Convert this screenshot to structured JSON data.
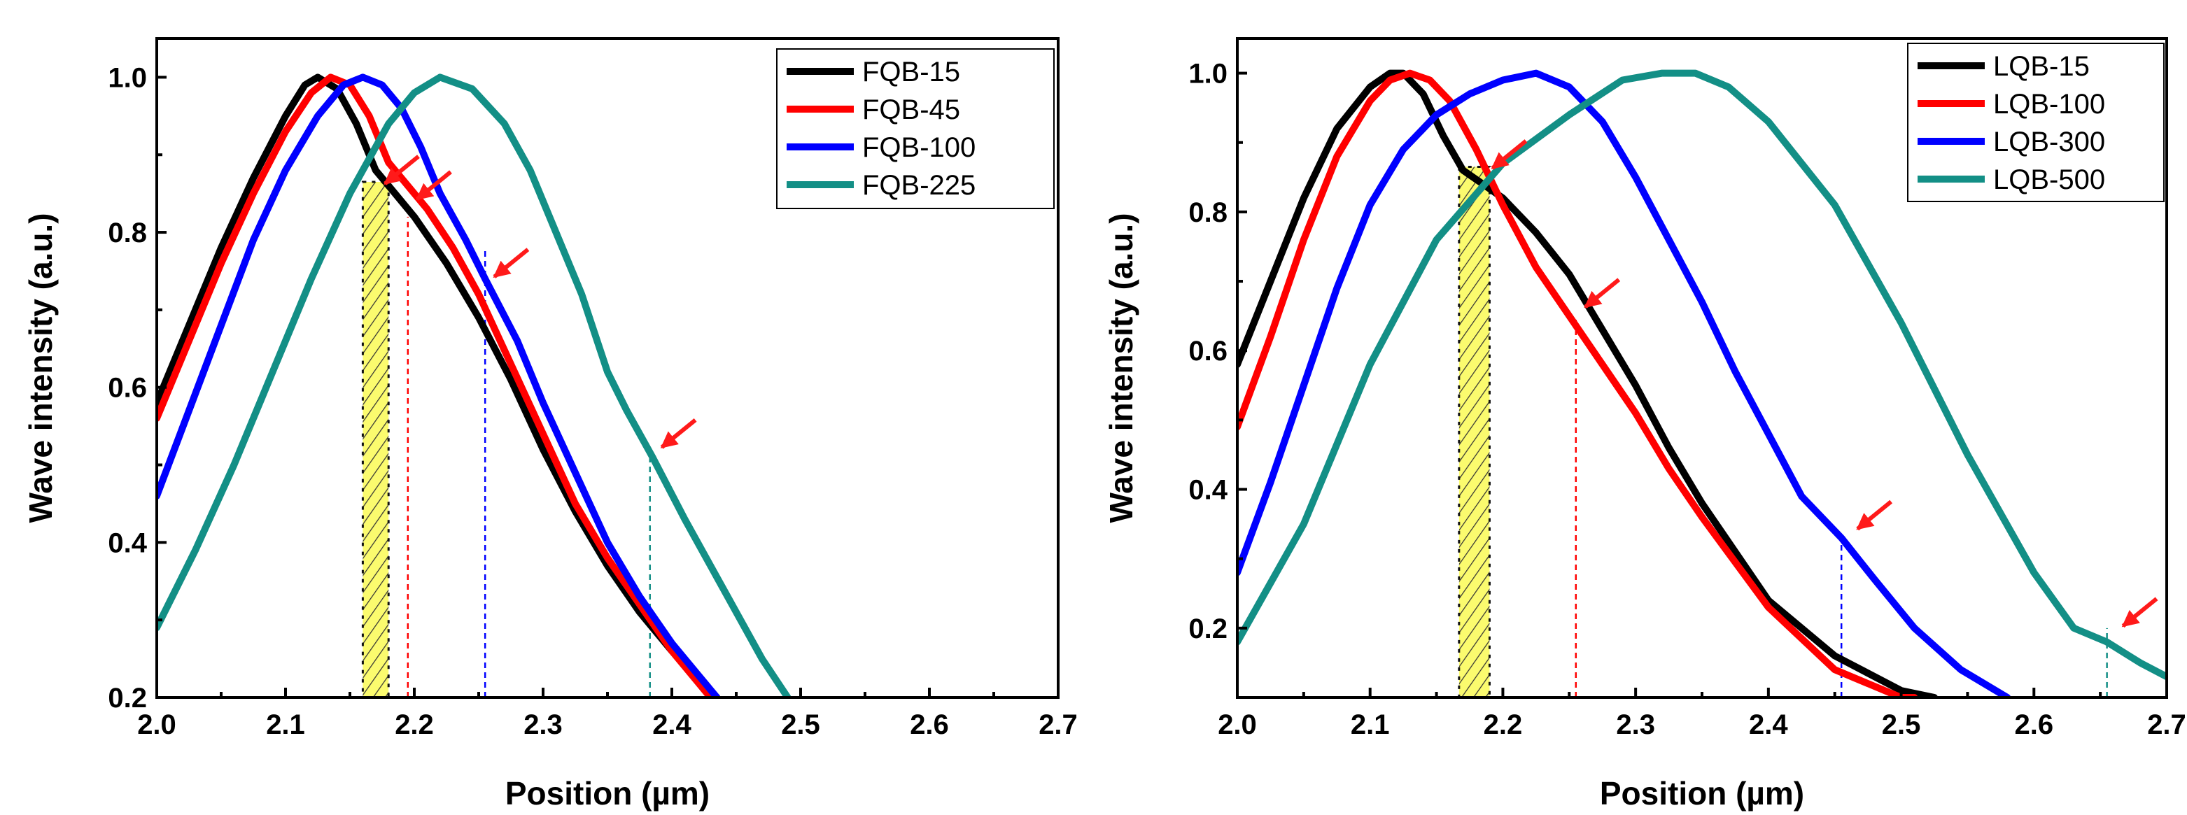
{
  "chart_data": [
    {
      "type": "line",
      "id": "left",
      "title": "",
      "xlabel": "Position (µm)",
      "ylabel": "Wave intensity (a.u.)",
      "xlim": [
        2.0,
        2.7
      ],
      "ylim": [
        0.2,
        1.05
      ],
      "xticks": [
        2.0,
        2.1,
        2.2,
        2.3,
        2.4,
        2.5,
        2.6,
        2.7
      ],
      "xtick_labels": [
        "2.0",
        "2.1",
        "2.2",
        "2.3",
        "2.4",
        "2.5",
        "2.6",
        "2.7"
      ],
      "yticks": [
        0.2,
        0.4,
        0.6,
        0.8,
        1.0
      ],
      "ytick_labels": [
        "0.2",
        "0.4",
        "0.6",
        "0.8",
        "1.0"
      ],
      "legend_position": "top-right",
      "shaded_band": {
        "x_range": [
          2.16,
          2.18
        ],
        "color": "#fbfb6e",
        "pattern": "hatched"
      },
      "series": [
        {
          "name": "FQB-15",
          "color": "#000000",
          "x": [
            2.0,
            2.025,
            2.05,
            2.075,
            2.1,
            2.115,
            2.125,
            2.14,
            2.155,
            2.17,
            2.185,
            2.2,
            2.225,
            2.25,
            2.275,
            2.3,
            2.325,
            2.35,
            2.375,
            2.4,
            2.425,
            2.435
          ],
          "y": [
            0.58,
            0.68,
            0.78,
            0.87,
            0.95,
            0.99,
            1.0,
            0.985,
            0.94,
            0.88,
            0.85,
            0.82,
            0.76,
            0.69,
            0.61,
            0.52,
            0.44,
            0.37,
            0.31,
            0.26,
            0.215,
            0.2
          ]
        },
        {
          "name": "FQB-45",
          "color": "#ff0000",
          "x": [
            2.0,
            2.025,
            2.05,
            2.075,
            2.1,
            2.12,
            2.135,
            2.15,
            2.165,
            2.18,
            2.195,
            2.21,
            2.23,
            2.25,
            2.275,
            2.3,
            2.325,
            2.35,
            2.375,
            2.4,
            2.42,
            2.43
          ],
          "y": [
            0.56,
            0.66,
            0.76,
            0.85,
            0.93,
            0.98,
            1.0,
            0.99,
            0.95,
            0.89,
            0.86,
            0.83,
            0.78,
            0.72,
            0.63,
            0.54,
            0.45,
            0.38,
            0.32,
            0.26,
            0.22,
            0.2
          ]
        },
        {
          "name": "FQB-100",
          "color": "#0000ff",
          "x": [
            2.0,
            2.025,
            2.05,
            2.075,
            2.1,
            2.125,
            2.145,
            2.16,
            2.175,
            2.19,
            2.205,
            2.22,
            2.24,
            2.255,
            2.28,
            2.3,
            2.325,
            2.35,
            2.375,
            2.4,
            2.42,
            2.435
          ],
          "y": [
            0.46,
            0.57,
            0.68,
            0.79,
            0.88,
            0.95,
            0.99,
            1.0,
            0.99,
            0.96,
            0.91,
            0.85,
            0.79,
            0.74,
            0.66,
            0.58,
            0.49,
            0.4,
            0.33,
            0.27,
            0.23,
            0.2
          ]
        },
        {
          "name": "FQB-225",
          "color": "#138f86",
          "x": [
            2.0,
            2.03,
            2.06,
            2.09,
            2.12,
            2.15,
            2.18,
            2.2,
            2.22,
            2.245,
            2.27,
            2.29,
            2.31,
            2.33,
            2.35,
            2.365,
            2.385,
            2.41,
            2.44,
            2.47,
            2.49
          ],
          "y": [
            0.29,
            0.39,
            0.5,
            0.62,
            0.74,
            0.85,
            0.94,
            0.98,
            1.0,
            0.985,
            0.94,
            0.88,
            0.8,
            0.72,
            0.62,
            0.57,
            0.51,
            0.43,
            0.34,
            0.25,
            0.2
          ]
        }
      ],
      "markers": [
        {
          "x": 2.195,
          "color": "#ff0000",
          "style": "dashed",
          "y_top": 0.82
        },
        {
          "x": 2.255,
          "color": "#0000ff",
          "style": "dashed",
          "y_top": 0.78
        },
        {
          "x": 2.383,
          "color": "#138f86",
          "style": "dashed",
          "y_top": 0.52
        }
      ],
      "arrows": [
        {
          "x": 2.175,
          "y": 0.86
        },
        {
          "x": 2.2,
          "y": 0.84
        },
        {
          "x": 2.26,
          "y": 0.74
        },
        {
          "x": 2.39,
          "y": 0.52
        }
      ]
    },
    {
      "type": "line",
      "id": "right",
      "title": "",
      "xlabel": "Position (µm)",
      "ylabel": "Wave intensity (a.u.)",
      "xlim": [
        2.0,
        2.7
      ],
      "ylim": [
        0.1,
        1.05
      ],
      "xticks": [
        2.0,
        2.1,
        2.2,
        2.3,
        2.4,
        2.5,
        2.6,
        2.7
      ],
      "xtick_labels": [
        "2.0",
        "2.1",
        "2.2",
        "2.3",
        "2.4",
        "2.5",
        "2.6",
        "2.7"
      ],
      "yticks": [
        0.2,
        0.4,
        0.6,
        0.8,
        1.0
      ],
      "ytick_labels": [
        "0.2",
        "0.4",
        "0.6",
        "0.8",
        "1.0"
      ],
      "legend_position": "top-right",
      "shaded_band": {
        "x_range": [
          2.167,
          2.19
        ],
        "color": "#fbfb6e",
        "pattern": "hatched"
      },
      "series": [
        {
          "name": "LQB-15",
          "color": "#000000",
          "x": [
            2.0,
            2.025,
            2.05,
            2.075,
            2.1,
            2.115,
            2.125,
            2.14,
            2.155,
            2.17,
            2.185,
            2.2,
            2.225,
            2.25,
            2.275,
            2.3,
            2.325,
            2.35,
            2.4,
            2.45,
            2.5,
            2.525
          ],
          "y": [
            0.58,
            0.7,
            0.82,
            0.92,
            0.98,
            1.0,
            1.0,
            0.97,
            0.91,
            0.86,
            0.84,
            0.82,
            0.77,
            0.71,
            0.63,
            0.55,
            0.46,
            0.38,
            0.24,
            0.16,
            0.11,
            0.1
          ]
        },
        {
          "name": "LQB-100",
          "color": "#ff0000",
          "x": [
            2.0,
            2.025,
            2.05,
            2.075,
            2.1,
            2.115,
            2.13,
            2.145,
            2.16,
            2.18,
            2.2,
            2.225,
            2.25,
            2.275,
            2.3,
            2.325,
            2.35,
            2.4,
            2.45,
            2.5,
            2.51
          ],
          "y": [
            0.49,
            0.62,
            0.76,
            0.88,
            0.96,
            0.99,
            1.0,
            0.99,
            0.96,
            0.89,
            0.81,
            0.72,
            0.65,
            0.58,
            0.51,
            0.43,
            0.36,
            0.23,
            0.14,
            0.1,
            0.1
          ]
        },
        {
          "name": "LQB-300",
          "color": "#0000ff",
          "x": [
            2.0,
            2.025,
            2.05,
            2.075,
            2.1,
            2.125,
            2.15,
            2.175,
            2.2,
            2.225,
            2.25,
            2.275,
            2.3,
            2.325,
            2.35,
            2.375,
            2.4,
            2.425,
            2.455,
            2.48,
            2.51,
            2.545,
            2.58
          ],
          "y": [
            0.28,
            0.41,
            0.55,
            0.69,
            0.81,
            0.89,
            0.94,
            0.97,
            0.99,
            1.0,
            0.98,
            0.93,
            0.85,
            0.76,
            0.67,
            0.57,
            0.48,
            0.39,
            0.33,
            0.27,
            0.2,
            0.14,
            0.1
          ]
        },
        {
          "name": "LQB-500",
          "color": "#138f86",
          "x": [
            2.0,
            2.05,
            2.1,
            2.15,
            2.2,
            2.25,
            2.29,
            2.32,
            2.345,
            2.37,
            2.4,
            2.45,
            2.5,
            2.55,
            2.6,
            2.63,
            2.655,
            2.68,
            2.7
          ],
          "y": [
            0.18,
            0.35,
            0.58,
            0.76,
            0.87,
            0.94,
            0.99,
            1.0,
            1.0,
            0.98,
            0.93,
            0.81,
            0.64,
            0.45,
            0.28,
            0.2,
            0.18,
            0.15,
            0.13
          ]
        }
      ],
      "markers": [
        {
          "x": 2.255,
          "color": "#ff0000",
          "style": "dashed",
          "y_top": 0.65
        },
        {
          "x": 2.455,
          "color": "#0000ff",
          "style": "dashed",
          "y_top": 0.33
        },
        {
          "x": 2.655,
          "color": "#138f86",
          "style": "dashed",
          "y_top": 0.2
        }
      ],
      "arrows": [
        {
          "x": 2.19,
          "y": 0.86
        },
        {
          "x": 2.26,
          "y": 0.66
        },
        {
          "x": 2.465,
          "y": 0.34
        },
        {
          "x": 2.665,
          "y": 0.2
        }
      ]
    }
  ]
}
